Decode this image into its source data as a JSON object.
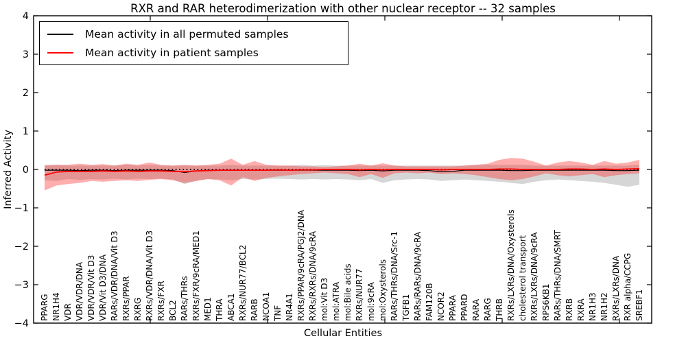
{
  "figure": {
    "title": "RXR and RAR heterodimerization with other nuclear receptor -- 32 samples",
    "xlabel": "Cellular Entities",
    "ylabel": "Inferred Activity"
  },
  "chart_data": {
    "type": "line",
    "title": "RXR and RAR heterodimerization with other nuclear receptor -- 32 samples",
    "xlabel": "Cellular Entities",
    "ylabel": "Inferred Activity",
    "ylim": [
      -4,
      4
    ],
    "yticks": [
      -4,
      -3,
      -2,
      -1,
      0,
      1,
      2,
      3,
      4
    ],
    "grid": false,
    "legend_position": "upper left",
    "categories": [
      "PPARG",
      "NR1H4",
      "VDR",
      "VDR/VDR/DNA",
      "VDR/VDR/Vit D3",
      "VDR/Vit D3/DNA",
      "RARs/VDR/DNA/Vit D3",
      "RXRs/PPAR",
      "RXRG",
      "RXRs/VDR/DNA/Vit D3",
      "RXRs/FXR",
      "BCL2",
      "RARs/THRs",
      "RXRs/FXR/9cRA/MED1",
      "MED1",
      "THRA",
      "ABCA1",
      "RXRs/NUR77/BCL2",
      "RARB",
      "NCOA1",
      "TNF",
      "NR4A1",
      "RXRs/PPAR/9cRA/PGJ2/DNA",
      "RXRs/RXRs/DNA/9cRA",
      "mol:Vit D3",
      "mol:ATRA",
      "mol:Bile acids",
      "RXRs/NUR77",
      "mol:9cRA",
      "mol:Oxysterols",
      "RARs/THRs/DNA/Src-1",
      "TGFB1",
      "RARs/RARs/DNA/9cRA",
      "FAM120B",
      "NCOR2",
      "PPARA",
      "PPARD",
      "RARA",
      "RARG",
      "THRB",
      "RXRs/LXRs/DNA/Oxysterols",
      "cholesterol transport",
      "RXRs/LXRs/DNA/9cRA",
      "RPS6KB1",
      "RARs/THRs/DNA/SMRT",
      "RXRB",
      "RXRA",
      "NR1H3",
      "NR1H2",
      "RXRs/LXRs/DNA",
      "RXR alpha/CCPG",
      "SREBF1"
    ],
    "series": [
      {
        "name": "Mean activity in all permuted samples",
        "color": "#000000",
        "width": 1.2,
        "values": [
          -0.02,
          -0.02,
          -0.02,
          -0.03,
          -0.02,
          -0.02,
          -0.03,
          -0.02,
          -0.02,
          -0.02,
          -0.02,
          -0.03,
          -0.08,
          -0.04,
          -0.02,
          -0.02,
          -0.02,
          -0.02,
          -0.02,
          -0.02,
          -0.02,
          -0.02,
          -0.02,
          -0.02,
          -0.02,
          -0.02,
          -0.02,
          -0.03,
          -0.02,
          -0.04,
          -0.02,
          -0.02,
          -0.02,
          -0.03,
          -0.06,
          -0.05,
          -0.02,
          -0.02,
          -0.02,
          -0.02,
          -0.03,
          -0.03,
          -0.02,
          -0.02,
          -0.02,
          -0.02,
          -0.02,
          -0.02,
          -0.02,
          -0.03,
          -0.03,
          -0.02
        ]
      },
      {
        "name": "Mean activity in patient samples",
        "color": "#ff0000",
        "width": 1.8,
        "values": [
          -0.15,
          -0.07,
          -0.05,
          -0.05,
          -0.05,
          -0.04,
          -0.05,
          -0.04,
          -0.05,
          -0.04,
          -0.04,
          -0.05,
          -0.06,
          -0.04,
          -0.03,
          -0.02,
          -0.02,
          -0.02,
          -0.02,
          -0.02,
          -0.01,
          -0.02,
          -0.01,
          -0.01,
          0,
          0,
          0,
          -0.01,
          0,
          -0.01,
          0,
          0,
          0,
          0,
          -0.01,
          0,
          0,
          0,
          0,
          0.01,
          0.01,
          0,
          0,
          0,
          0,
          0.01,
          0.01,
          0,
          0.01,
          0,
          0.01,
          0.02
        ]
      }
    ],
    "bands": [
      {
        "name": "permuted-std-band",
        "color": "#9e9e9e",
        "opacity": 0.42,
        "upper": [
          0.12,
          0.12,
          0.1,
          0.1,
          0.1,
          0.1,
          0.1,
          0.12,
          0.1,
          0.12,
          0.1,
          0.1,
          0.1,
          0.1,
          0.1,
          0.1,
          0.12,
          0.1,
          0.1,
          0.1,
          0.1,
          0.1,
          0.12,
          0.1,
          0.11,
          0.1,
          0.1,
          0.1,
          0.1,
          0.1,
          0.1,
          0.1,
          0.1,
          0.1,
          0.1,
          0.1,
          0.1,
          0.12,
          0.12,
          0.12,
          0.12,
          0.12,
          0.1,
          0.1,
          0.1,
          0.1,
          0.1,
          0.1,
          0.1,
          0.1,
          0.1,
          0.12
        ],
        "lower": [
          -0.28,
          -0.3,
          -0.25,
          -0.27,
          -0.25,
          -0.26,
          -0.24,
          -0.26,
          -0.24,
          -0.25,
          -0.24,
          -0.26,
          -0.38,
          -0.3,
          -0.25,
          -0.26,
          -0.28,
          -0.25,
          -0.26,
          -0.25,
          -0.24,
          -0.25,
          -0.26,
          -0.25,
          -0.26,
          -0.25,
          -0.26,
          -0.28,
          -0.25,
          -0.35,
          -0.28,
          -0.26,
          -0.25,
          -0.26,
          -0.3,
          -0.28,
          -0.26,
          -0.28,
          -0.3,
          -0.32,
          -0.35,
          -0.38,
          -0.32,
          -0.28,
          -0.26,
          -0.28,
          -0.3,
          -0.32,
          -0.35,
          -0.4,
          -0.45,
          -0.4
        ]
      },
      {
        "name": "patient-std-band",
        "color": "#ff2a2a",
        "opacity": 0.38,
        "upper": [
          0.1,
          0.12,
          0.12,
          0.15,
          0.12,
          0.14,
          0.1,
          0.15,
          0.12,
          0.18,
          0.12,
          0.1,
          0.12,
          0.1,
          0.12,
          0.15,
          0.28,
          0.12,
          0.22,
          0.12,
          0.1,
          0.1,
          0.08,
          0.08,
          0.06,
          0.08,
          0.1,
          0.15,
          0.1,
          0.16,
          0.1,
          0.08,
          0.08,
          0.08,
          0.08,
          0.08,
          0.1,
          0.12,
          0.15,
          0.25,
          0.3,
          0.28,
          0.2,
          0.1,
          0.18,
          0.22,
          0.18,
          0.12,
          0.22,
          0.15,
          0.18,
          0.25
        ],
        "lower": [
          -0.55,
          -0.42,
          -0.38,
          -0.35,
          -0.3,
          -0.32,
          -0.3,
          -0.28,
          -0.3,
          -0.27,
          -0.25,
          -0.28,
          -0.35,
          -0.3,
          -0.25,
          -0.28,
          -0.42,
          -0.2,
          -0.3,
          -0.22,
          -0.18,
          -0.15,
          -0.12,
          -0.1,
          -0.08,
          -0.1,
          -0.12,
          -0.2,
          -0.12,
          -0.22,
          -0.1,
          -0.08,
          -0.1,
          -0.08,
          -0.12,
          -0.1,
          -0.12,
          -0.15,
          -0.2,
          -0.25,
          -0.28,
          -0.25,
          -0.18,
          -0.1,
          -0.15,
          -0.18,
          -0.15,
          -0.12,
          -0.2,
          -0.15,
          -0.12,
          -0.1
        ]
      }
    ],
    "zero_line": {
      "y": 0,
      "style": "dotted",
      "color": "#000000"
    }
  }
}
